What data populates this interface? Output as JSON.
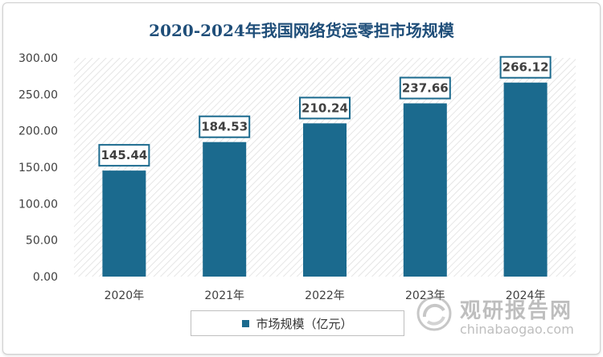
{
  "chart_data": {
    "type": "bar",
    "title": "2020-2024年我国网络货运零担市场规模",
    "categories": [
      "2020年",
      "2021年",
      "2022年",
      "2023年",
      "2024年"
    ],
    "series": [
      {
        "name": "市场规模（亿元）",
        "values": [
          145.44,
          184.53,
          210.24,
          237.66,
          266.12
        ]
      }
    ],
    "data_labels": [
      "145.44",
      "184.53",
      "210.24",
      "237.66",
      "266.12"
    ],
    "y_ticks": [
      "0.00",
      "50.00",
      "100.00",
      "150.00",
      "200.00",
      "250.00",
      "300.00"
    ],
    "ylim": [
      0,
      300
    ],
    "xlabel": "",
    "ylabel": "",
    "grid": false,
    "legend_position": "bottom",
    "bar_color": "#1b6a8e",
    "background": "hatched"
  },
  "watermark": {
    "name_cn": "观研报告网",
    "name_en": "chinabaogao.com"
  }
}
